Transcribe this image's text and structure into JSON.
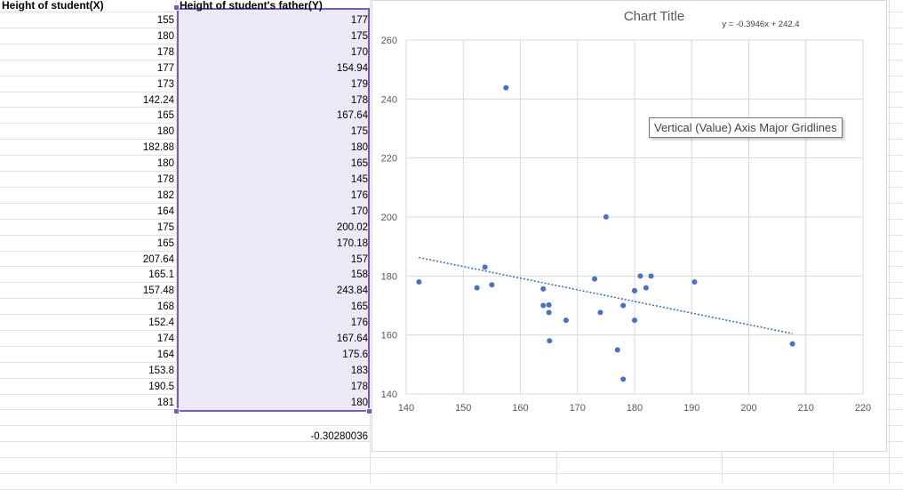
{
  "sheet": {
    "col_x_header": "Height of student(X)",
    "col_y_header": "Height of student's father(Y)",
    "col_x_values": [
      "155",
      "180",
      "178",
      "177",
      "173",
      "142.24",
      "165",
      "180",
      "182.88",
      "180",
      "178",
      "182",
      "164",
      "175",
      "165",
      "207.64",
      "165.1",
      "157.48",
      "168",
      "152.4",
      "174",
      "164",
      "153.8",
      "190.5",
      "181"
    ],
    "col_y_values": [
      "177",
      "175",
      "170",
      "154.94",
      "179",
      "178",
      "167.64",
      "175",
      "180",
      "165",
      "145",
      "176",
      "170",
      "200.02",
      "170.18",
      "157",
      "158",
      "243.84",
      "165",
      "176",
      "167.64",
      "175.6",
      "183",
      "178",
      "180"
    ],
    "result": "-0.30280036"
  },
  "chart": {
    "title": "Chart Title",
    "equation": "y = -0.3946x + 242.4",
    "tooltip": "Vertical (Value) Axis Major Gridlines"
  },
  "chart_data": {
    "type": "scatter",
    "title": "Chart Title",
    "xlim": [
      140,
      220
    ],
    "ylim": [
      140,
      260
    ],
    "x_ticks": [
      "140",
      "150",
      "160",
      "170",
      "180",
      "190",
      "200",
      "210",
      "220"
    ],
    "y_ticks": [
      "140",
      "160",
      "180",
      "200",
      "220",
      "240",
      "260"
    ],
    "grid": true,
    "points": [
      [
        155,
        177
      ],
      [
        180,
        175
      ],
      [
        178,
        170
      ],
      [
        177,
        154.94
      ],
      [
        173,
        179
      ],
      [
        142.24,
        178
      ],
      [
        165,
        167.64
      ],
      [
        180,
        175
      ],
      [
        182.88,
        180
      ],
      [
        180,
        165
      ],
      [
        178,
        145
      ],
      [
        182,
        176
      ],
      [
        164,
        170
      ],
      [
        175,
        200.02
      ],
      [
        165,
        170.18
      ],
      [
        207.64,
        157
      ],
      [
        165.1,
        158
      ],
      [
        157.48,
        243.84
      ],
      [
        168,
        165
      ],
      [
        152.4,
        176
      ],
      [
        174,
        167.64
      ],
      [
        164,
        175.6
      ],
      [
        153.8,
        183
      ],
      [
        190.5,
        178
      ],
      [
        181,
        180
      ]
    ],
    "trendline": {
      "slope": -0.3946,
      "intercept": 242.4,
      "x_range": [
        142.24,
        207.64
      ],
      "style": "dotted"
    },
    "marker_color": "#4472c4"
  }
}
